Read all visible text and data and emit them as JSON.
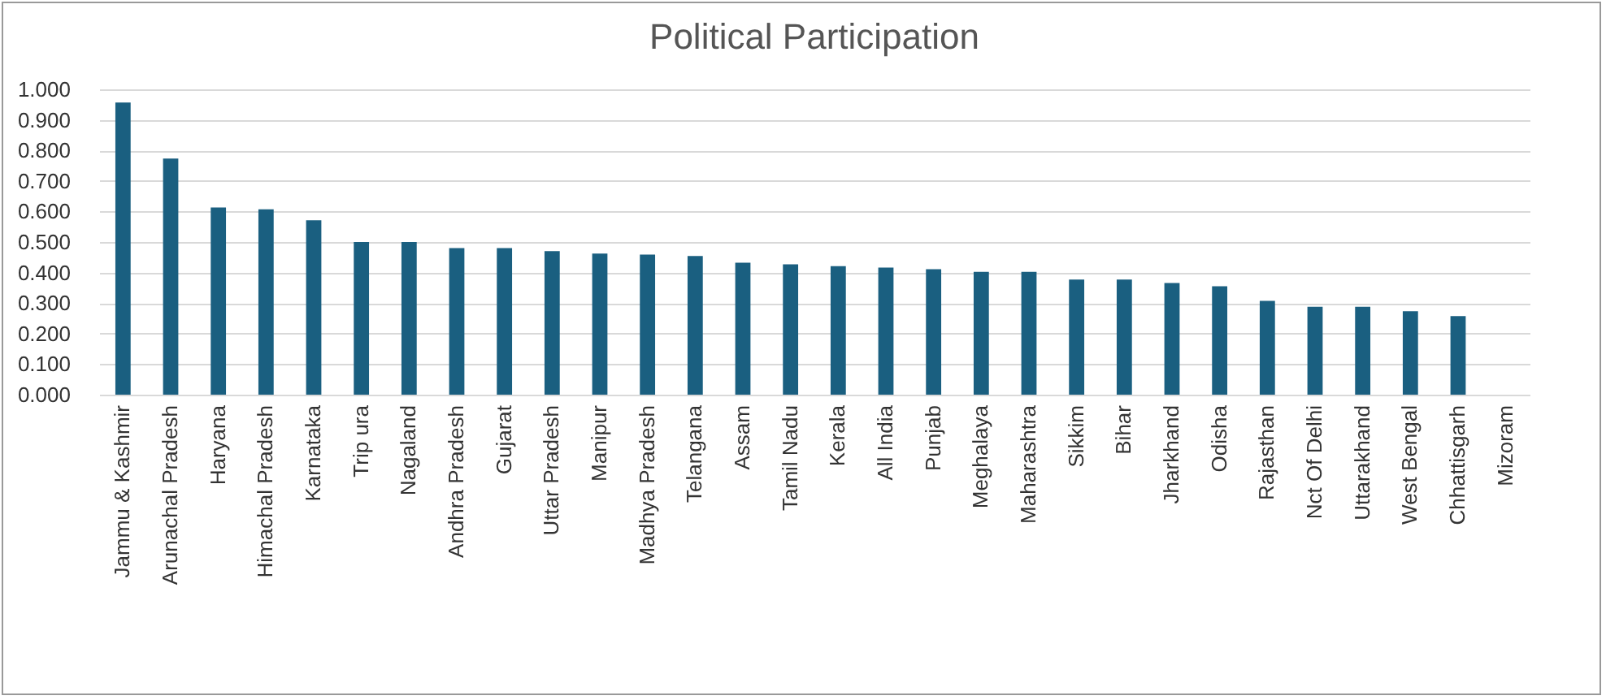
{
  "chart_data": {
    "type": "bar",
    "title": "Political Participation",
    "categories": [
      "Jammu & Kashmir",
      "Arunachal Pradesh",
      "Haryana",
      "Himachal Pradesh",
      "Karnataka",
      "Trip ura",
      "Nagaland",
      "Andhra Pradesh",
      "Gujarat",
      "Uttar Pradesh",
      "Manipur",
      "Madhya Pradesh",
      "Telangana",
      "Assam",
      "Tamil Nadu",
      "Kerala",
      "All India",
      "Punjab",
      "Meghalaya",
      "Maharashtra",
      "Sikkim",
      "Bihar",
      "Jharkhand",
      "Odisha",
      "Rajasthan",
      "Nct Of Delhi",
      "Uttarakhand",
      "West Bengal",
      "Chhattisgarh",
      "Mizoram"
    ],
    "values": [
      0.957,
      0.773,
      0.613,
      0.607,
      0.571,
      0.5,
      0.5,
      0.48,
      0.48,
      0.47,
      0.462,
      0.459,
      0.454,
      0.432,
      0.427,
      0.421,
      0.416,
      0.411,
      0.402,
      0.402,
      0.377,
      0.377,
      0.366,
      0.355,
      0.307,
      0.288,
      0.288,
      0.273,
      0.257,
      null
    ],
    "color": "#1a5f80",
    "ylim": [
      0,
      1
    ],
    "yticks": [
      {
        "value": 0,
        "label": "0.000"
      },
      {
        "value": 0.1,
        "label": "0.100"
      },
      {
        "value": 0.2,
        "label": "0.200"
      },
      {
        "value": 0.3,
        "label": "0.300"
      },
      {
        "value": 0.4,
        "label": "0.400"
      },
      {
        "value": 0.5,
        "label": "0.500"
      },
      {
        "value": 0.6,
        "label": "0.600"
      },
      {
        "value": 0.7,
        "label": "0.700"
      },
      {
        "value": 0.8,
        "label": "0.800"
      },
      {
        "value": 0.9,
        "label": "0.900"
      },
      {
        "value": 1,
        "label": "1.000"
      }
    ],
    "grid": "y"
  }
}
